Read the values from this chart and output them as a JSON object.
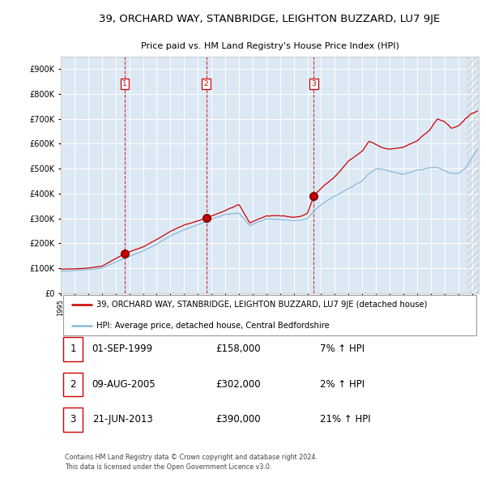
{
  "title": "39, ORCHARD WAY, STANBRIDGE, LEIGHTON BUZZARD, LU7 9JE",
  "subtitle": "Price paid vs. HM Land Registry's House Price Index (HPI)",
  "background_color": "#dce9f5",
  "plot_bg_color": "#dce9f5",
  "red_line_label": "39, ORCHARD WAY, STANBRIDGE, LEIGHTON BUZZARD, LU7 9JE (detached house)",
  "blue_line_label": "HPI: Average price, detached house, Central Bedfordshire",
  "sales": [
    {
      "label": "1",
      "date": "01-SEP-1999",
      "price": 158000,
      "hpi_pct": "7% ↑ HPI",
      "year": 1999.67
    },
    {
      "label": "2",
      "date": "09-AUG-2005",
      "price": 302000,
      "hpi_pct": "2% ↑ HPI",
      "year": 2005.61
    },
    {
      "label": "3",
      "date": "21-JUN-2013",
      "price": 390000,
      "hpi_pct": "21% ↑ HPI",
      "year": 2013.47
    }
  ],
  "footer": "Contains HM Land Registry data © Crown copyright and database right 2024.\nThis data is licensed under the Open Government Licence v3.0.",
  "ylim": [
    0,
    950000
  ],
  "xlim_start": 1995,
  "xlim_end": 2025.5,
  "red_milestones": {
    "1995": 95000,
    "1997": 100000,
    "1998": 108000,
    "1999.67": 158000,
    "2001": 185000,
    "2002": 215000,
    "2003": 248000,
    "2004": 272000,
    "2005.61": 302000,
    "2006": 310000,
    "2007": 330000,
    "2008.0": 355000,
    "2008.8": 280000,
    "2009.3": 295000,
    "2010": 310000,
    "2011": 308000,
    "2012": 305000,
    "2012.5": 308000,
    "2013.0": 320000,
    "2013.47": 390000,
    "2014": 420000,
    "2015": 470000,
    "2016": 530000,
    "2017.0": 570000,
    "2017.5": 610000,
    "2018.0": 595000,
    "2018.5": 580000,
    "2019": 575000,
    "2020": 585000,
    "2020.5": 600000,
    "2021": 615000,
    "2022": 660000,
    "2022.5": 700000,
    "2023.0": 685000,
    "2023.5": 660000,
    "2024.0": 670000,
    "2024.5": 700000,
    "2025.0": 720000,
    "2025.4": 730000
  },
  "blue_milestones": {
    "1995": 87000,
    "1997": 93000,
    "1998": 100000,
    "1999.67": 140000,
    "2001": 168000,
    "2002": 196000,
    "2003": 230000,
    "2004": 255000,
    "2005.61": 288000,
    "2006": 297000,
    "2007": 315000,
    "2008.0": 322000,
    "2008.8": 270000,
    "2009.3": 283000,
    "2010": 298000,
    "2011": 295000,
    "2012": 290000,
    "2012.5": 293000,
    "2013.0": 300000,
    "2013.47": 330000,
    "2014": 355000,
    "2015": 390000,
    "2016": 420000,
    "2017.0": 450000,
    "2017.5": 480000,
    "2018.0": 500000,
    "2018.5": 498000,
    "2019": 490000,
    "2020": 478000,
    "2020.5": 485000,
    "2021": 495000,
    "2022": 505000,
    "2022.5": 502000,
    "2023.0": 490000,
    "2023.5": 480000,
    "2024.0": 480000,
    "2024.5": 500000,
    "2025.0": 540000,
    "2025.4": 580000
  }
}
